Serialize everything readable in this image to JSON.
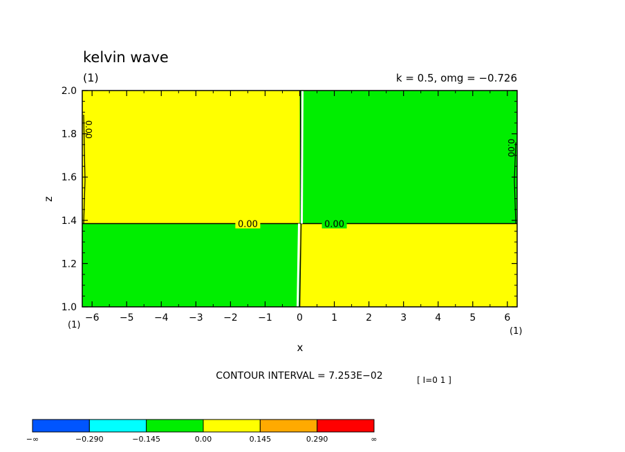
{
  "chart_data": {
    "type": "heatmap",
    "title": "kelvin wave",
    "subtitle_left": "(1)",
    "subtitle_right": "k = 0.5, omg = −0.726",
    "xlabel": "x",
    "ylabel": "z",
    "xlim": [
      -6.283,
      6.283
    ],
    "ylim": [
      1.0,
      2.0
    ],
    "x_ticks": [
      -6,
      -5,
      -4,
      -3,
      -2,
      -1,
      0,
      1,
      2,
      3,
      4,
      5,
      6
    ],
    "x_tick_labels": [
      "−6",
      "−5",
      "−4",
      "−3",
      "−2",
      "−1",
      "0",
      "1",
      "2",
      "3",
      "4",
      "5",
      "6"
    ],
    "y_ticks": [
      1.0,
      1.2,
      1.4,
      1.6,
      1.8,
      2.0
    ],
    "y_tick_labels": [
      "1.0",
      "1.2",
      "1.4",
      "1.6",
      "1.8",
      "2.0"
    ],
    "x_axis_left_note": "(1)",
    "x_axis_right_note": "(1)",
    "contour_interval_text": "CONTOUR INTERVAL = 7.253E−02",
    "index_note": "[ I=0 1 ]",
    "regions": [
      {
        "x": [
          -6.283,
          0.0
        ],
        "z": [
          1.385,
          2.0
        ],
        "level_bin": "0.00 to 0.145",
        "color": "#ffff00"
      },
      {
        "x": [
          0.0,
          6.283
        ],
        "z": [
          1.385,
          2.0
        ],
        "level_bin": "−0.145 to 0.00",
        "color": "#00ee00"
      },
      {
        "x": [
          -6.283,
          0.0
        ],
        "z": [
          1.0,
          1.385
        ],
        "level_bin": "−0.145 to 0.00",
        "color": "#00ee00"
      },
      {
        "x": [
          0.0,
          6.283
        ],
        "z": [
          1.0,
          1.385
        ],
        "level_bin": "0.00 to 0.145",
        "color": "#ffff00"
      }
    ],
    "contour_labels": [
      {
        "text": "0.00",
        "x": -1.5,
        "z": 1.385,
        "rotate": false
      },
      {
        "text": "0.00",
        "x": 1.0,
        "z": 1.385,
        "rotate": false
      },
      {
        "text": "0.00",
        "x": -6.1,
        "z": 1.82,
        "rotate": true
      },
      {
        "text": "0.00",
        "x": 6.1,
        "z": 1.735,
        "rotate": true
      }
    ],
    "colorbar": {
      "colors": [
        "#0055ff",
        "#00ffff",
        "#00ee00",
        "#ffff00",
        "#ffaa00",
        "#ff0000"
      ],
      "labels": [
        "−∞",
        "−0.290",
        "−0.145",
        "0.00",
        "0.145",
        "0.290",
        "∞"
      ]
    }
  }
}
